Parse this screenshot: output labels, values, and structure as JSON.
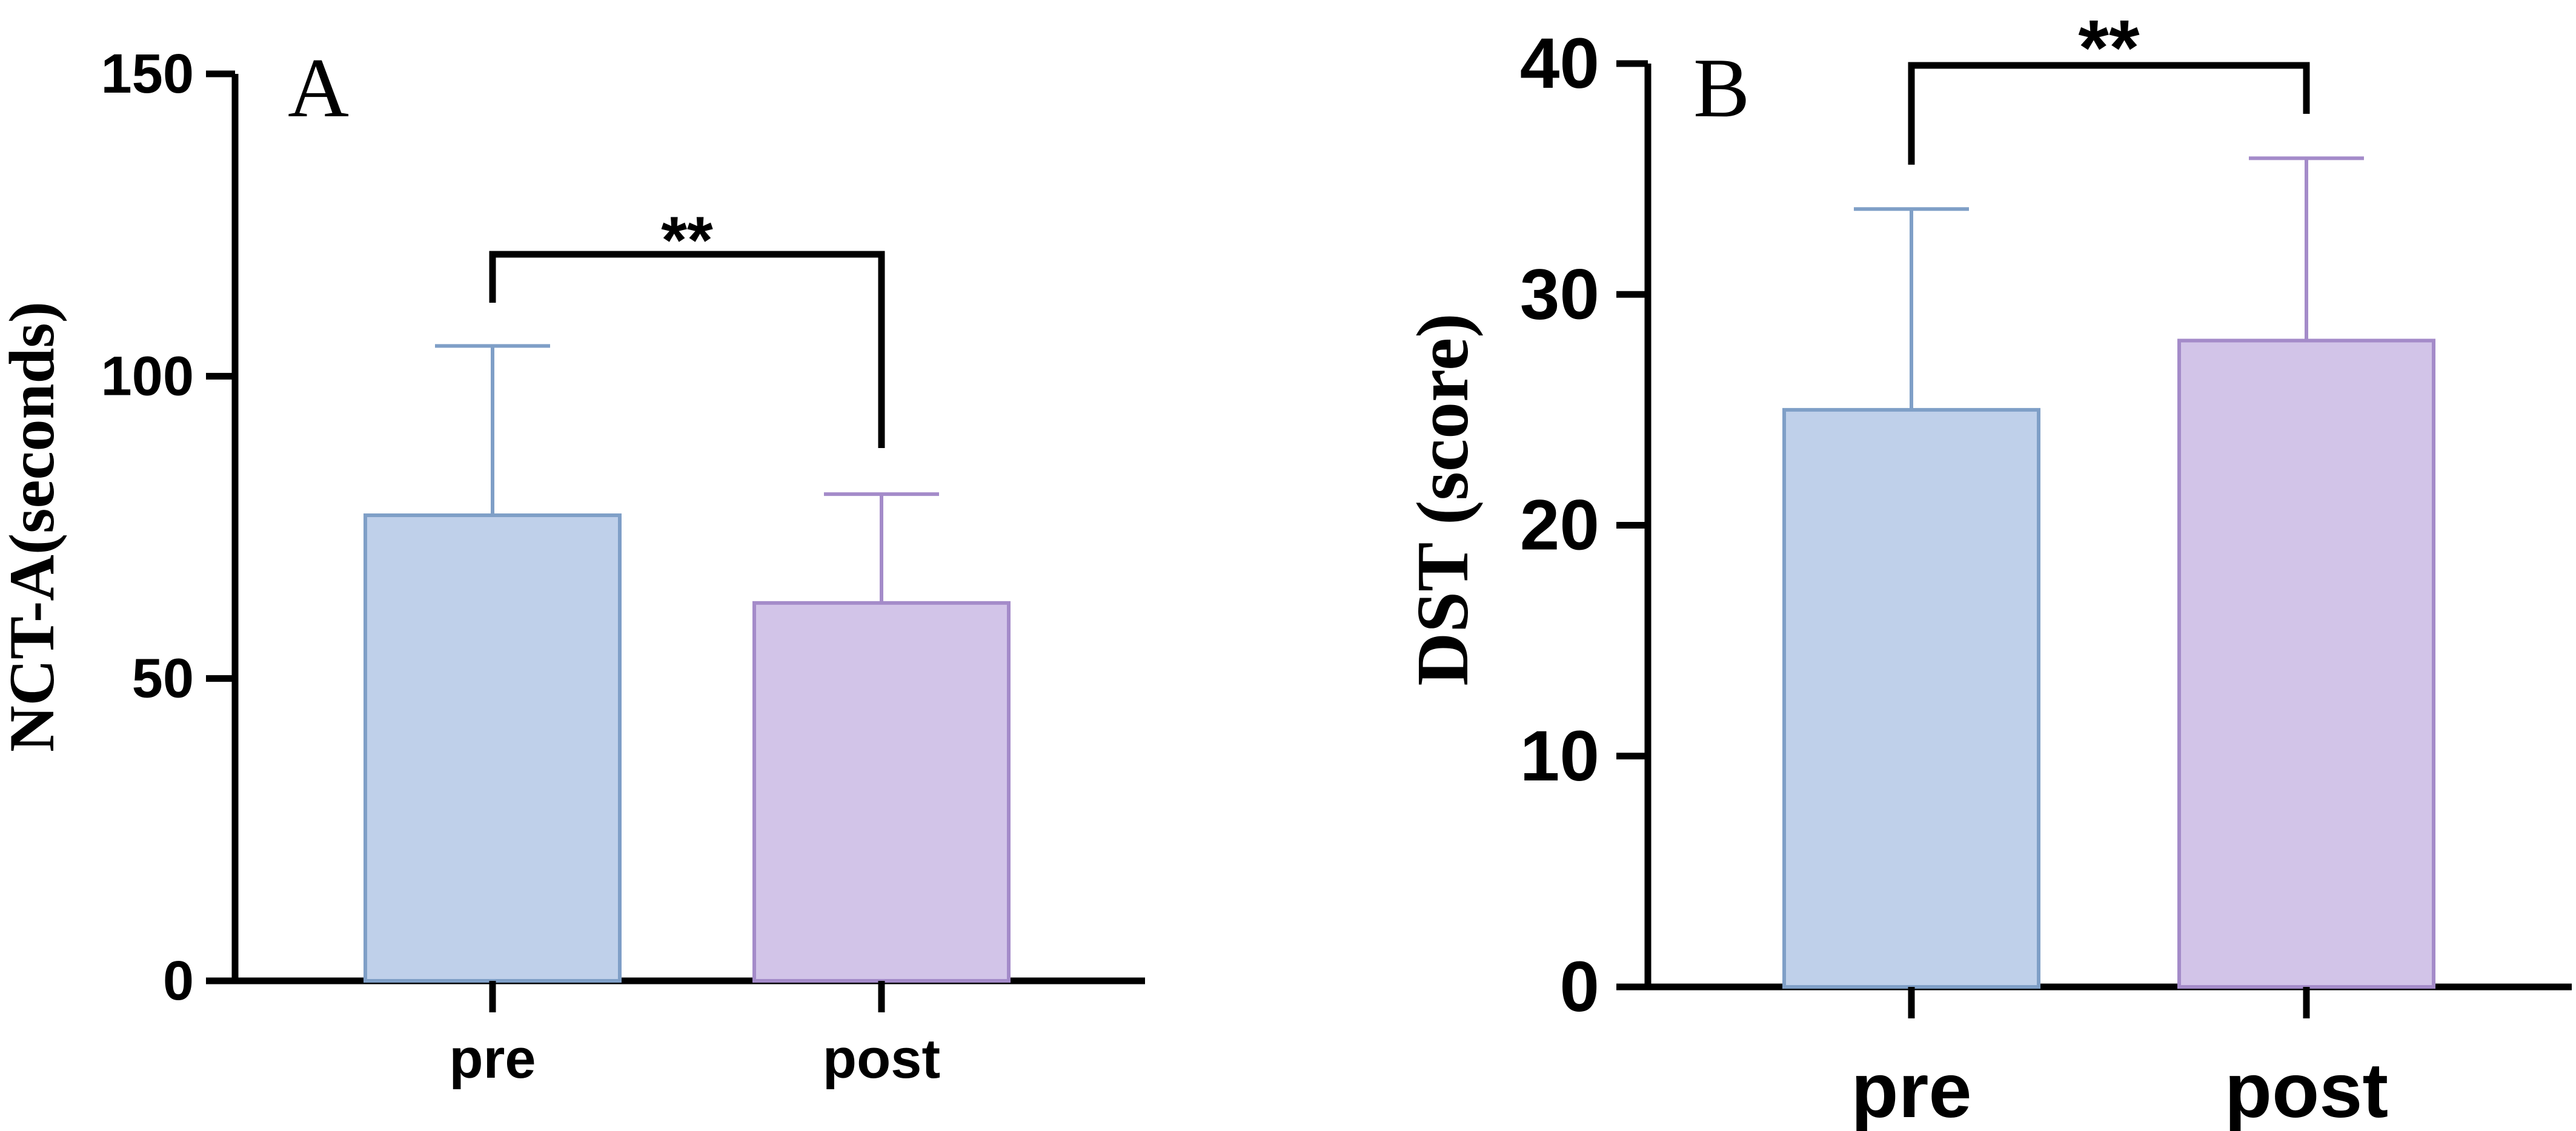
{
  "chart_data": [
    {
      "type": "bar",
      "panel_label": "A",
      "categories": [
        "pre",
        "post"
      ],
      "values": [
        77,
        62.5
      ],
      "error_upper": [
        105,
        80.5
      ],
      "colors": {
        "fill": [
          "#bfd0ea",
          "#d2c4e8"
        ],
        "stroke": [
          "#7f9fc7",
          "#a48bc9"
        ]
      },
      "ylabel": "NCT-A(seconds)",
      "ylim": [
        0,
        150
      ],
      "yticks": [
        0,
        50,
        100,
        150
      ],
      "significance": {
        "between": [
          "pre",
          "post"
        ],
        "label": "**"
      },
      "grid": false,
      "legend": "none"
    },
    {
      "type": "bar",
      "panel_label": "B",
      "categories": [
        "pre",
        "post"
      ],
      "values": [
        25,
        28
      ],
      "error_upper": [
        33.7,
        35.9
      ],
      "colors": {
        "fill": [
          "#bfd0ea",
          "#d2c4e8"
        ],
        "stroke": [
          "#7f9fc7",
          "#a48bc9"
        ]
      },
      "ylabel": "DST (score)",
      "ylim": [
        0,
        40
      ],
      "yticks": [
        0,
        10,
        20,
        30,
        40
      ],
      "significance": {
        "between": [
          "pre",
          "post"
        ],
        "label": "**"
      },
      "grid": false,
      "legend": "none"
    }
  ]
}
